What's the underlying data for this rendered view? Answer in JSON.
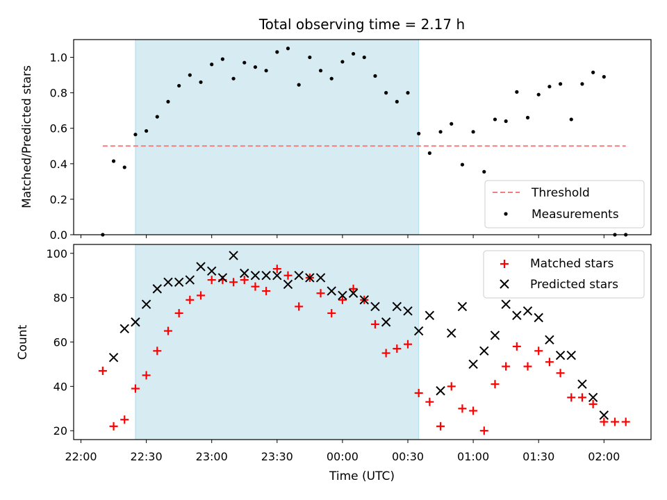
{
  "chart_data": [
    {
      "type": "scatter",
      "title": "Total observing time = 2.17 h",
      "ylabel": "Matched/Predicted stars",
      "xlabel": "",
      "xlim": [
        "22:00",
        "02:10"
      ],
      "ylim": [
        0,
        1.1
      ],
      "yticks": [
        0.0,
        0.2,
        0.4,
        0.6,
        0.8,
        1.0
      ],
      "ytick_labels": [
        "0.0",
        "0.2",
        "0.4",
        "0.6",
        "0.8",
        "1.0"
      ],
      "shaded_region": {
        "start": "22:25",
        "end": "00:35",
        "color": "#add8e6"
      },
      "threshold": {
        "name": "Threshold",
        "value": 0.5,
        "start": "22:10",
        "end": "02:10",
        "color": "#f08080"
      },
      "legend": {
        "placement": "lower-right",
        "entries": [
          "Threshold",
          "Measurements"
        ]
      },
      "series": [
        {
          "name": "Measurements",
          "color": "#000000",
          "x": [
            "22:10",
            "22:15",
            "22:20",
            "22:25",
            "22:30",
            "22:35",
            "22:40",
            "22:45",
            "22:50",
            "22:55",
            "23:00",
            "23:05",
            "23:10",
            "23:15",
            "23:20",
            "23:25",
            "23:30",
            "23:35",
            "23:40",
            "23:45",
            "23:50",
            "23:55",
            "00:00",
            "00:05",
            "00:10",
            "00:15",
            "00:20",
            "00:25",
            "00:30",
            "00:35",
            "00:40",
            "00:45",
            "00:50",
            "00:55",
            "01:00",
            "01:05",
            "01:10",
            "01:15",
            "01:20",
            "01:25",
            "01:30",
            "01:35",
            "01:40",
            "01:45",
            "01:50",
            "01:55",
            "02:00",
            "02:05",
            "02:10"
          ],
          "y": [
            0.0,
            0.415,
            0.38,
            0.565,
            0.585,
            0.665,
            0.75,
            0.84,
            0.9,
            0.86,
            0.96,
            0.99,
            0.88,
            0.97,
            0.945,
            0.925,
            1.03,
            1.05,
            0.845,
            1.0,
            0.925,
            0.88,
            0.975,
            1.02,
            1.0,
            0.895,
            0.8,
            0.75,
            0.8,
            0.57,
            0.46,
            0.58,
            0.625,
            0.395,
            0.58,
            0.355,
            0.65,
            0.64,
            0.805,
            0.66,
            0.79,
            0.835,
            0.85,
            0.65,
            0.85,
            0.915,
            0.89,
            0.0,
            0.0
          ]
        }
      ]
    },
    {
      "type": "scatter",
      "title": "",
      "xlabel": "Time (UTC)",
      "ylabel": "Count",
      "xlim": [
        "22:00",
        "02:10"
      ],
      "ylim": [
        16,
        104
      ],
      "xticks": [
        "22:00",
        "22:30",
        "23:00",
        "23:30",
        "00:00",
        "00:30",
        "01:00",
        "01:30",
        "02:00"
      ],
      "yticks": [
        20,
        40,
        60,
        80,
        100
      ],
      "ytick_labels": [
        "20",
        "40",
        "60",
        "80",
        "100"
      ],
      "shaded_region": {
        "start": "22:25",
        "end": "00:35",
        "color": "#add8e6"
      },
      "legend": {
        "placement": "upper-right",
        "entries": [
          "Matched stars",
          "Predicted stars"
        ]
      },
      "series": [
        {
          "name": "Matched stars",
          "marker": "+",
          "color": "#ff0000",
          "x": [
            "22:10",
            "22:15",
            "22:20",
            "22:25",
            "22:30",
            "22:35",
            "22:40",
            "22:45",
            "22:50",
            "22:55",
            "23:00",
            "23:05",
            "23:10",
            "23:15",
            "23:20",
            "23:25",
            "23:30",
            "23:35",
            "23:40",
            "23:45",
            "23:50",
            "23:55",
            "00:00",
            "00:05",
            "00:10",
            "00:15",
            "00:20",
            "00:25",
            "00:30",
            "00:35",
            "00:40",
            "00:45",
            "00:50",
            "00:55",
            "01:00",
            "01:05",
            "01:10",
            "01:15",
            "01:20",
            "01:25",
            "01:30",
            "01:35",
            "01:40",
            "01:45",
            "01:50",
            "01:55",
            "02:00",
            "02:05",
            "02:10"
          ],
          "y": [
            47,
            22,
            25,
            39,
            45,
            56,
            65,
            73,
            79,
            81,
            88,
            88,
            87,
            88,
            85,
            83,
            93,
            90,
            76,
            89,
            82,
            73,
            79,
            84,
            79,
            68,
            55,
            57,
            59,
            37,
            33,
            22,
            40,
            30,
            29,
            20,
            41,
            49,
            58,
            49,
            56,
            51,
            46,
            35,
            35,
            32,
            24,
            24,
            24
          ]
        },
        {
          "name": "Predicted stars",
          "marker": "x",
          "color": "#000000",
          "x": [
            "22:15",
            "22:20",
            "22:25",
            "22:30",
            "22:35",
            "22:40",
            "22:45",
            "22:50",
            "22:55",
            "23:00",
            "23:05",
            "23:10",
            "23:15",
            "23:20",
            "23:25",
            "23:30",
            "23:35",
            "23:40",
            "23:45",
            "23:50",
            "23:55",
            "00:00",
            "00:05",
            "00:10",
            "00:15",
            "00:20",
            "00:25",
            "00:30",
            "00:35",
            "00:40",
            "00:45",
            "00:50",
            "00:55",
            "01:00",
            "01:05",
            "01:10",
            "01:15",
            "01:20",
            "01:25",
            "01:30",
            "01:35",
            "01:40",
            "01:45",
            "01:50",
            "01:55",
            "02:00"
          ],
          "y": [
            53,
            66,
            69,
            77,
            84,
            87,
            87,
            88,
            94,
            92,
            89,
            99,
            91,
            90,
            90,
            90,
            86,
            90,
            89,
            89,
            83,
            81,
            82,
            79,
            76,
            69,
            76,
            74,
            65,
            72,
            38,
            64,
            76,
            50,
            56,
            63,
            77,
            72,
            74,
            71,
            61,
            54,
            54,
            41,
            35,
            27
          ]
        }
      ]
    }
  ]
}
